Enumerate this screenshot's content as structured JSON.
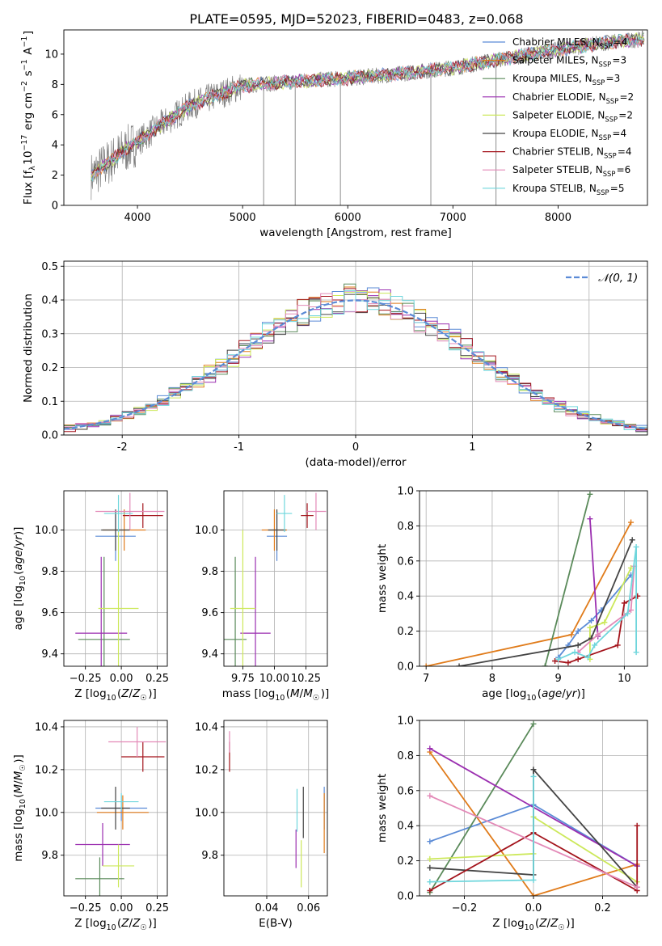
{
  "figure_title": "PLATE=0595, MJD=52023, FIBERID=0483, z=0.068",
  "models": [
    {
      "label": "Chabrier MILES, N<sub>SSP</sub>=4",
      "color": "#5b8bd6"
    },
    {
      "label": "Salpeter MILES, N<sub>SSP</sub>=3",
      "color": "#e07b1a"
    },
    {
      "label": "Kroupa MILES, N<sub>SSP</sub>=3",
      "color": "#5a8a5a"
    },
    {
      "label": "Chabrier ELODIE, N<sub>SSP</sub>=2",
      "color": "#9b2fb0"
    },
    {
      "label": "Salpeter ELODIE, N<sub>SSP</sub>=2",
      "color": "#cce85a"
    },
    {
      "label": "Kroupa ELODIE, N<sub>SSP</sub>=4",
      "color": "#444444"
    },
    {
      "label": "Chabrier STELIB, N<sub>SSP</sub>=4",
      "color": "#a3131b"
    },
    {
      "label": "Salpeter STELIB, N<sub>SSP</sub>=6",
      "color": "#e38ab8"
    },
    {
      "label": "Kroupa STELIB, N<sub>SSP</sub>=5",
      "color": "#6fd6dc"
    }
  ],
  "data_color": "#808080",
  "chart_data": [
    {
      "id": "spectrum",
      "type": "line",
      "xlabel": "wavelength [Angstrom, rest frame]",
      "ylabel": "Flux [f<sub>λ</sub>10<sup>−17</sup> erg cm<sup>−2</sup> s<sup>−1</sup> A<sup>−1</sup>]",
      "xlim": [
        3300,
        8850
      ],
      "ylim": [
        0,
        11.6
      ],
      "xticks": [
        4000,
        5000,
        6000,
        7000,
        8000
      ],
      "yticks": [
        0,
        2,
        4,
        6,
        8,
        10
      ],
      "continuum": {
        "x": [
          3550,
          3700,
          3850,
          4000,
          4200,
          4500,
          5000,
          5500,
          6000,
          6500,
          7000,
          7500,
          8000,
          8500,
          8820
        ],
        "y": [
          1.9,
          2.7,
          3.5,
          4.2,
          5.2,
          6.6,
          7.9,
          8.2,
          8.4,
          8.7,
          9.1,
          9.7,
          10.3,
          10.8,
          11.0
        ]
      },
      "spikes": [
        {
          "x": 5200,
          "y": 0
        },
        {
          "x": 5500,
          "y": 0
        },
        {
          "x": 5930,
          "y": 0
        },
        {
          "x": 6790,
          "y": 0
        },
        {
          "x": 7410,
          "y": 0
        }
      ]
    },
    {
      "id": "residual_histogram",
      "type": "bar",
      "xlabel": "(data-model)/error",
      "ylabel": "Normed distribution",
      "xlim": [
        -2.5,
        2.5
      ],
      "ylim": [
        0,
        0.515
      ],
      "xticks": [
        -2,
        -1,
        0,
        1,
        2
      ],
      "yticks": [
        0.0,
        0.1,
        0.2,
        0.3,
        0.4,
        0.5
      ],
      "bin_width": 0.1,
      "reference_label": "𝒩(0, 1)",
      "reference_color": "#5b8bd6"
    },
    {
      "id": "age_vs_Z",
      "type": "scatter",
      "xlabel": "Z [log<sub>10</sub>(<i>Z</i>/<i>Z</i><sub>☉</sub>)]",
      "ylabel": "age  [log<sub>10</sub>(<i>age</i>/<i>yr</i>)]",
      "xlim": [
        -0.4,
        0.32
      ],
      "ylim": [
        9.34,
        10.19
      ],
      "xticks": [
        -0.25,
        0.0,
        0.25
      ],
      "xticklabels": [
        "−0.25",
        "0.00",
        "0.25"
      ],
      "yticks": [
        9.4,
        9.6,
        9.8,
        10.0
      ],
      "points": [
        {
          "model": 0,
          "x": -0.04,
          "y": 9.97,
          "xerr": 0.14,
          "yerr": 0.12
        },
        {
          "model": 1,
          "x": 0.02,
          "y": 10.0,
          "xerr": 0.15,
          "yerr": 0.1
        },
        {
          "model": 2,
          "x": -0.12,
          "y": 9.47,
          "xerr": 0.18,
          "yerr": 0.4
        },
        {
          "model": 3,
          "x": -0.14,
          "y": 9.5,
          "xerr": 0.18,
          "yerr": 0.37
        },
        {
          "model": 4,
          "x": -0.02,
          "y": 9.62,
          "xerr": 0.14,
          "yerr": 0.38
        },
        {
          "model": 5,
          "x": -0.04,
          "y": 10.0,
          "xerr": 0.1,
          "yerr": 0.1
        },
        {
          "model": 6,
          "x": 0.15,
          "y": 10.07,
          "xerr": 0.14,
          "yerr": 0.06
        },
        {
          "model": 7,
          "x": 0.06,
          "y": 10.09,
          "xerr": 0.24,
          "yerr": 0.09
        },
        {
          "model": 8,
          "x": -0.02,
          "y": 10.08,
          "xerr": 0.1,
          "yerr": 0.09
        }
      ]
    },
    {
      "id": "age_vs_mass",
      "type": "scatter",
      "xlabel": "mass [log<sub>10</sub>(<i>M</i>/<i>M</i><sub>☉</sub>)]",
      "ylabel": "",
      "xlim": [
        9.6,
        10.42
      ],
      "ylim": [
        9.34,
        10.19
      ],
      "xticks": [
        9.75,
        10.0,
        10.25
      ],
      "xticklabels": [
        "9.75",
        "10.00",
        "10.25"
      ],
      "yticks": [
        9.4,
        9.6,
        9.8,
        10.0
      ],
      "points": [
        {
          "model": 0,
          "x": 10.02,
          "y": 9.97,
          "xerr": 0.08,
          "yerr": 0.12
        },
        {
          "model": 1,
          "x": 10.0,
          "y": 10.0,
          "xerr": 0.1,
          "yerr": 0.1
        },
        {
          "model": 2,
          "x": 9.69,
          "y": 9.47,
          "xerr": 0.09,
          "yerr": 0.4
        },
        {
          "model": 3,
          "x": 9.85,
          "y": 9.5,
          "xerr": 0.12,
          "yerr": 0.37
        },
        {
          "model": 4,
          "x": 9.75,
          "y": 9.62,
          "xerr": 0.1,
          "yerr": 0.38
        },
        {
          "model": 5,
          "x": 10.02,
          "y": 10.0,
          "xerr": 0.07,
          "yerr": 0.1
        },
        {
          "model": 6,
          "x": 10.26,
          "y": 10.07,
          "xerr": 0.05,
          "yerr": 0.06
        },
        {
          "model": 7,
          "x": 10.33,
          "y": 10.09,
          "xerr": 0.08,
          "yerr": 0.09
        },
        {
          "model": 8,
          "x": 10.08,
          "y": 10.08,
          "xerr": 0.06,
          "yerr": 0.09
        }
      ]
    },
    {
      "id": "mass_weight_vs_age",
      "type": "line",
      "xlabel": "age  [log<sub>10</sub>(<i>age</i>/<i>yr</i>)]",
      "ylabel": "mass weight",
      "xlim": [
        6.9,
        10.35
      ],
      "ylim": [
        0,
        1.0
      ],
      "xticks": [
        7,
        8,
        9,
        10
      ],
      "xticklabels": [
        "7",
        "8",
        "9",
        "10"
      ],
      "yticks": [
        0.0,
        0.2,
        0.4,
        0.6,
        0.8,
        1.0
      ],
      "series": [
        {
          "model": 0,
          "x": [
            9.0,
            9.15,
            9.3,
            9.5,
            9.65,
            10.1
          ],
          "y": [
            0.05,
            0.12,
            0.2,
            0.26,
            0.32,
            0.52
          ]
        },
        {
          "model": 1,
          "x": [
            7.0,
            9.2,
            10.1
          ],
          "y": [
            0.0,
            0.18,
            0.82
          ]
        },
        {
          "model": 2,
          "x": [
            8.8,
            9.48
          ],
          "y": [
            0.0,
            0.98
          ]
        },
        {
          "model": 3,
          "x": [
            9.48,
            9.6
          ],
          "y": [
            0.84,
            0.17
          ]
        },
        {
          "model": 4,
          "x": [
            9.48,
            9.48,
            9.7,
            10.1
          ],
          "y": [
            0.04,
            0.22,
            0.25,
            0.56
          ]
        },
        {
          "model": 5,
          "x": [
            7.5,
            9.3,
            9.5,
            10.12
          ],
          "y": [
            0.0,
            0.12,
            0.16,
            0.72
          ]
        },
        {
          "model": 6,
          "x": [
            8.95,
            9.15,
            9.3,
            9.9,
            10.0,
            10.2
          ],
          "y": [
            0.03,
            0.02,
            0.04,
            0.12,
            0.36,
            0.4
          ]
        },
        {
          "model": 7,
          "x": [
            9.3,
            9.6,
            10.1,
            10.15
          ],
          "y": [
            0.08,
            0.18,
            0.32,
            0.57
          ]
        },
        {
          "model": 8,
          "x": [
            9.0,
            9.25,
            9.45,
            9.55,
            10.05,
            10.18,
            10.18
          ],
          "y": [
            0.04,
            0.08,
            0.05,
            0.12,
            0.3,
            0.68,
            0.08
          ]
        }
      ]
    },
    {
      "id": "mass_vs_Z",
      "type": "scatter",
      "xlabel": "Z [log<sub>10</sub>(<i>Z</i>/<i>Z</i><sub>☉</sub>)]",
      "ylabel": "mass [log<sub>10</sub>(<i>M</i>/<i>M</i><sub>☉</sub>)]",
      "xlim": [
        -0.4,
        0.32
      ],
      "ylim": [
        9.61,
        10.43
      ],
      "xticks": [
        -0.25,
        0.0,
        0.25
      ],
      "xticklabels": [
        "−0.25",
        "0.00",
        "0.25"
      ],
      "yticks": [
        9.8,
        10.0,
        10.2,
        10.4
      ],
      "points": [
        {
          "model": 0,
          "x": 0.0,
          "y": 10.02,
          "xerr": 0.18,
          "yerr": 0.06
        },
        {
          "model": 1,
          "x": 0.01,
          "y": 10.0,
          "xerr": 0.18,
          "yerr": 0.08
        },
        {
          "model": 2,
          "x": -0.15,
          "y": 9.69,
          "xerr": 0.17,
          "yerr": 0.1
        },
        {
          "model": 3,
          "x": -0.13,
          "y": 9.85,
          "xerr": 0.19,
          "yerr": 0.1
        },
        {
          "model": 4,
          "x": -0.02,
          "y": 9.75,
          "xerr": 0.11,
          "yerr": 0.1
        },
        {
          "model": 5,
          "x": -0.04,
          "y": 10.02,
          "xerr": 0.1,
          "yerr": 0.1
        },
        {
          "model": 6,
          "x": 0.15,
          "y": 10.26,
          "xerr": 0.15,
          "yerr": 0.07
        },
        {
          "model": 7,
          "x": 0.11,
          "y": 10.33,
          "xerr": 0.2,
          "yerr": 0.07
        },
        {
          "model": 8,
          "x": 0.0,
          "y": 10.05,
          "xerr": 0.12,
          "yerr": 0.04
        }
      ]
    },
    {
      "id": "mass_vs_ebv",
      "type": "scatter",
      "xlabel": "E(B-V)",
      "ylabel": "",
      "xlim": [
        0.0195,
        0.069
      ],
      "ylim": [
        9.61,
        10.43
      ],
      "xticks": [
        0.04,
        0.06
      ],
      "xticklabels": [
        "0.04",
        "0.06"
      ],
      "yticks": [
        9.8,
        10.0,
        10.2,
        10.4
      ],
      "points": [
        {
          "model": 0,
          "x": 0.0675,
          "y": 10.02,
          "yerr": 0.1
        },
        {
          "model": 1,
          "x": 0.0675,
          "y": 9.95,
          "yerr": 0.14
        },
        {
          "model": 3,
          "x": 0.054,
          "y": 9.83,
          "yerr": 0.09
        },
        {
          "model": 4,
          "x": 0.0565,
          "y": 9.76,
          "yerr": 0.11
        },
        {
          "model": 5,
          "x": 0.0575,
          "y": 10.0,
          "yerr": 0.12
        },
        {
          "model": 6,
          "x": 0.0222,
          "y": 10.26,
          "yerr": 0.07
        },
        {
          "model": 7,
          "x": 0.0222,
          "y": 10.33,
          "yerr": 0.05
        },
        {
          "model": 8,
          "x": 0.0545,
          "y": 10.01,
          "yerr": 0.1
        }
      ]
    },
    {
      "id": "mass_weight_vs_Z",
      "type": "line",
      "xlabel": "Z [log<sub>10</sub>(<i>Z</i>/<i>Z</i><sub>☉</sub>)]",
      "ylabel": "mass weight",
      "xlim": [
        -0.33,
        0.33
      ],
      "ylim": [
        0,
        1.0
      ],
      "xticks": [
        -0.2,
        0.0,
        0.2
      ],
      "xticklabels": [
        "−0.2",
        "0.0",
        "0.2"
      ],
      "yticks": [
        0.0,
        0.2,
        0.4,
        0.6,
        0.8,
        1.0
      ],
      "series": [
        {
          "model": 0,
          "x": [
            -0.3,
            0.0,
            0.3
          ],
          "y": [
            0.31,
            0.52,
            0.17
          ]
        },
        {
          "model": 1,
          "x": [
            -0.3,
            0.0,
            0.3
          ],
          "y": [
            0.82,
            0.0,
            0.18
          ]
        },
        {
          "model": 2,
          "x": [
            -0.3,
            0.0
          ],
          "y": [
            0.02,
            0.98
          ]
        },
        {
          "model": 3,
          "x": [
            -0.3,
            0.3
          ],
          "y": [
            0.84,
            0.17
          ]
        },
        {
          "model": 4,
          "x": [
            -0.3,
            0.0,
            0.0,
            0.3
          ],
          "y": [
            0.21,
            0.24,
            0.45,
            0.08
          ]
        },
        {
          "model": 5,
          "x": [
            -0.3,
            0.0,
            0.0,
            0.3
          ],
          "y": [
            0.16,
            0.12,
            0.72,
            0.05
          ]
        },
        {
          "model": 6,
          "x": [
            -0.3,
            0.0,
            0.3,
            0.3
          ],
          "y": [
            0.03,
            0.36,
            0.03,
            0.4
          ]
        },
        {
          "model": 7,
          "x": [
            -0.3,
            0.3
          ],
          "y": [
            0.57,
            0.05
          ]
        },
        {
          "model": 8,
          "x": [
            -0.3,
            0.0,
            0.0
          ],
          "y": [
            0.08,
            0.09,
            0.68
          ]
        }
      ]
    }
  ]
}
